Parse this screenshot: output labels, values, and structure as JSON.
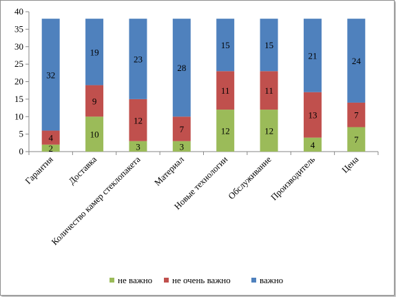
{
  "chart_data": {
    "type": "bar",
    "stacked": true,
    "categories": [
      "Гарантия",
      "Доставка",
      "Количество камер стеклопакета",
      "Материал",
      "Новые технологии",
      "Обслуживание",
      "Производитель",
      "Цена"
    ],
    "series": [
      {
        "name": "не важно",
        "color": "#9bbb59",
        "values": [
          2,
          10,
          3,
          3,
          12,
          12,
          4,
          7
        ]
      },
      {
        "name": "не очень важно",
        "color": "#c0504d",
        "values": [
          4,
          9,
          12,
          7,
          11,
          11,
          13,
          7
        ]
      },
      {
        "name": "важно",
        "color": "#4f81bd",
        "values": [
          32,
          19,
          23,
          28,
          15,
          15,
          21,
          24
        ]
      }
    ],
    "ylim": [
      0,
      40
    ],
    "yticks": [
      0,
      5,
      10,
      15,
      20,
      25,
      30,
      35,
      40
    ],
    "grid": false,
    "legend_position": "bottom"
  }
}
